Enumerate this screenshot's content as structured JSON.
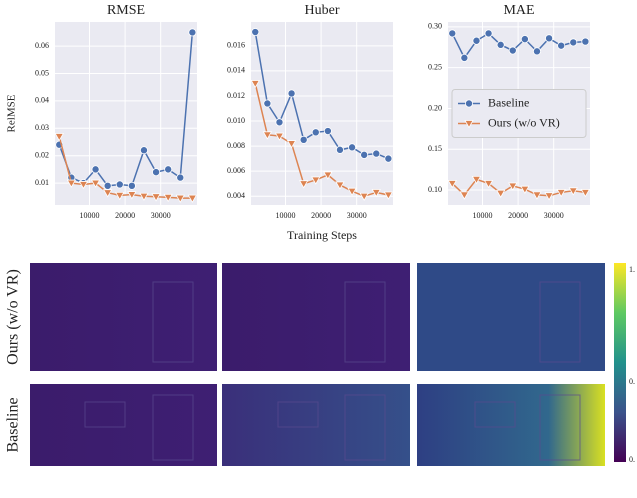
{
  "chart_data": [
    {
      "type": "line",
      "title": "RMSE",
      "ylabel": "RelMSE",
      "x": [
        1500,
        4900,
        8300,
        11700,
        15100,
        18500,
        21900,
        25300,
        28700,
        32100,
        35500,
        38900
      ],
      "xlim": [
        300,
        40200
      ],
      "xticks": [
        10000,
        20000,
        30000
      ],
      "ylim": [
        0.002,
        0.0688
      ],
      "yticks": [
        0.01,
        0.02,
        0.03,
        0.04,
        0.05,
        0.06
      ],
      "grid": true,
      "series": [
        {
          "name": "Baseline",
          "color": "#4c72b0",
          "marker": "circle",
          "values": [
            0.024,
            0.012,
            0.01,
            0.015,
            0.009,
            0.0095,
            0.009,
            0.022,
            0.014,
            0.015,
            0.012,
            0.065
          ]
        },
        {
          "name": "Ours (w/o VR)",
          "color": "#dd8452",
          "marker": "triangle",
          "values": [
            0.027,
            0.01,
            0.0095,
            0.01,
            0.0065,
            0.0055,
            0.0058,
            0.0052,
            0.005,
            0.0048,
            0.0045,
            0.0045
          ]
        }
      ]
    },
    {
      "type": "line",
      "title": "Huber",
      "xlabel": "Training Steps",
      "x": [
        1500,
        4900,
        8300,
        11700,
        15100,
        18500,
        21900,
        25300,
        28700,
        32100,
        35500,
        38900
      ],
      "xlim": [
        300,
        40200
      ],
      "xticks": [
        10000,
        20000,
        30000
      ],
      "ylim": [
        0.0033,
        0.0179
      ],
      "yticks": [
        0.004,
        0.006,
        0.008,
        {
          "value": 0.01,
          "label": "0.010"
        },
        0.012,
        0.014,
        0.016
      ],
      "grid": true,
      "series": [
        {
          "name": "Baseline",
          "color": "#4c72b0",
          "marker": "circle",
          "values": [
            0.0171,
            0.0114,
            0.0099,
            0.0122,
            0.0085,
            0.0091,
            0.0092,
            0.0077,
            0.0079,
            0.0073,
            0.0074,
            0.007
          ]
        },
        {
          "name": "Ours (w/o VR)",
          "color": "#dd8452",
          "marker": "triangle",
          "values": [
            0.013,
            0.0089,
            0.0088,
            0.0082,
            0.005,
            0.0053,
            0.0057,
            0.0049,
            0.0044,
            0.004,
            0.0043,
            0.0041
          ]
        }
      ]
    },
    {
      "type": "line",
      "title": "MAE",
      "legend": "center right",
      "x": [
        1500,
        4900,
        8300,
        11700,
        15100,
        18500,
        21900,
        25300,
        28700,
        32100,
        35500,
        38900
      ],
      "xlim": [
        300,
        40200
      ],
      "xticks": [
        10000,
        20000,
        30000
      ],
      "ylim": [
        0.0816,
        0.306
      ],
      "yticks": [
        {
          "value": 0.1,
          "label": "0.10"
        },
        0.15,
        {
          "value": 0.2,
          "label": "0.20"
        },
        0.25,
        {
          "value": 0.3,
          "label": "0.30"
        }
      ],
      "grid": true,
      "series": [
        {
          "name": "Baseline",
          "color": "#4c72b0",
          "marker": "circle",
          "values": [
            0.292,
            0.262,
            0.283,
            0.292,
            0.278,
            0.271,
            0.285,
            0.27,
            0.286,
            0.277,
            0.281,
            0.282
          ]
        },
        {
          "name": "Ours (w/o VR)",
          "color": "#dd8452",
          "marker": "triangle",
          "values": [
            0.108,
            0.094,
            0.113,
            0.108,
            0.096,
            0.105,
            0.101,
            0.094,
            0.093,
            0.097,
            0.099,
            0.097
          ]
        }
      ]
    }
  ],
  "images": {
    "rows": [
      "Ours (w/o VR)",
      "Baseline"
    ],
    "colorbar_labels": [
      "1.",
      "0.",
      "0."
    ]
  }
}
